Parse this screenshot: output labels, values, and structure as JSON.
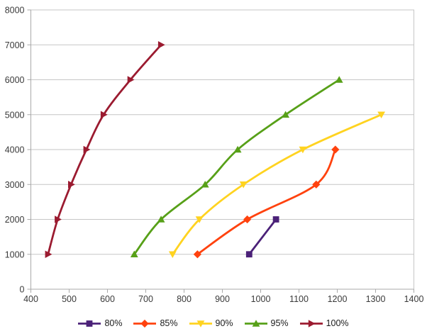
{
  "chart_data": {
    "type": "line",
    "title": "",
    "xlabel": "",
    "ylabel": "",
    "grid": "horizontal",
    "smooth_lines": true,
    "legend_position": "bottom",
    "x_axis": {
      "min": 400,
      "max": 1400,
      "tick_step": 100,
      "ticks": [
        400,
        500,
        600,
        700,
        800,
        900,
        1000,
        1100,
        1200,
        1300,
        1400
      ]
    },
    "y_axis": {
      "min": 0,
      "max": 8000,
      "tick_step": 1000,
      "ticks": [
        0,
        1000,
        2000,
        3000,
        4000,
        5000,
        6000,
        7000,
        8000
      ]
    },
    "series": [
      {
        "name": "80%",
        "color": "#4B2178",
        "marker": "square",
        "points": [
          [
            970,
            1000
          ],
          [
            1040,
            2000
          ]
        ]
      },
      {
        "name": "85%",
        "color": "#FF420E",
        "marker": "diamond",
        "points": [
          [
            835,
            1000
          ],
          [
            965,
            2000
          ],
          [
            1145,
            3000
          ],
          [
            1195,
            4000
          ]
        ]
      },
      {
        "name": "90%",
        "color": "#FFD320",
        "marker": "triangle-down",
        "points": [
          [
            770,
            1000
          ],
          [
            840,
            2000
          ],
          [
            955,
            3000
          ],
          [
            1110,
            4000
          ],
          [
            1315,
            5000
          ]
        ]
      },
      {
        "name": "95%",
        "color": "#57A018",
        "marker": "triangle-up",
        "points": [
          [
            670,
            1000
          ],
          [
            740,
            2000
          ],
          [
            855,
            3000
          ],
          [
            940,
            4000
          ],
          [
            1065,
            5000
          ],
          [
            1205,
            6000
          ]
        ]
      },
      {
        "name": "100%",
        "color": "#9B1B30",
        "marker": "triangle-right",
        "points": [
          [
            445,
            1000
          ],
          [
            470,
            2000
          ],
          [
            505,
            3000
          ],
          [
            545,
            4000
          ],
          [
            590,
            5000
          ],
          [
            660,
            6000
          ],
          [
            740,
            7000
          ]
        ]
      }
    ],
    "style": {
      "gridline_color": "#C6C6C6",
      "axis_color": "#A9A9A9",
      "tick_label_color": "#3A3A3A",
      "background": "#FFFFFF"
    }
  }
}
